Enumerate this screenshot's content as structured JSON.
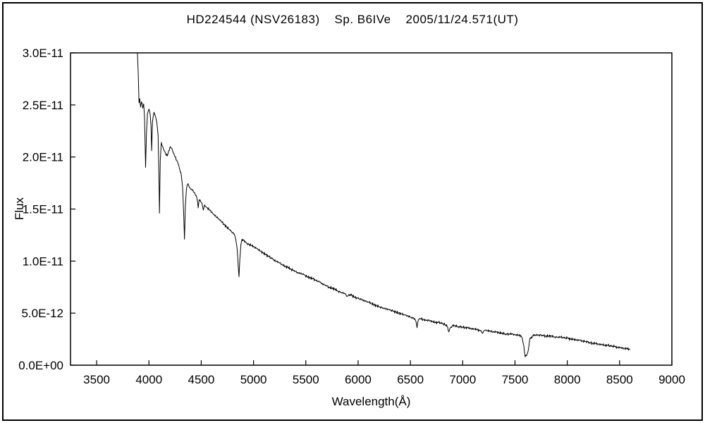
{
  "figure": {
    "background": "#ffffff",
    "frame_color": "#000000"
  },
  "chart_data": {
    "type": "line",
    "title": "HD224544 (NSV26183)    Sp. B6IVe    2005/11/24.571(UT)",
    "xlabel": "Wavelength(Å)",
    "ylabel": "Flux",
    "xlim": [
      3250,
      9000
    ],
    "ylim": [
      0,
      3e-11
    ],
    "x_ticks": [
      3500,
      4000,
      4500,
      5000,
      5500,
      6000,
      6500,
      7000,
      7500,
      8000,
      8500,
      9000
    ],
    "x_tick_labels": [
      "3500",
      "4000",
      "4500",
      "5000",
      "5500",
      "6000",
      "6500",
      "7000",
      "7500",
      "8000",
      "8500",
      "9000"
    ],
    "y_ticks": [
      0,
      5e-12,
      1e-11,
      1.5e-11,
      2e-11,
      2.5e-11,
      3e-11
    ],
    "y_tick_labels": [
      "0.0E+00",
      "5.0E-12",
      "1.0E-11",
      "1.5E-11",
      "2.0E-11",
      "2.5E-11",
      "3.0E-11"
    ],
    "grid": false,
    "legend": "none",
    "line_color": "#000000",
    "axis_color": "#000000",
    "noise_amplitude": 1.2e-13,
    "series": [
      {
        "name": "spectrum",
        "points": [
          [
            3890,
            3.3e-11
          ],
          [
            3898,
            2.8e-11
          ],
          [
            3905,
            2.52e-11
          ],
          [
            3912,
            2.56e-11
          ],
          [
            3920,
            2.48e-11
          ],
          [
            3930,
            2.53e-11
          ],
          [
            3940,
            2.47e-11
          ],
          [
            3950,
            2.51e-11
          ],
          [
            3958,
            2.38e-11
          ],
          [
            3968,
            1.9e-11
          ],
          [
            3976,
            2.22e-11
          ],
          [
            3986,
            2.42e-11
          ],
          [
            4000,
            2.46e-11
          ],
          [
            4012,
            2.41e-11
          ],
          [
            4020,
            2.3e-11
          ],
          [
            4026,
            2.06e-11
          ],
          [
            4034,
            2.34e-11
          ],
          [
            4048,
            2.43e-11
          ],
          [
            4062,
            2.39e-11
          ],
          [
            4076,
            2.33e-11
          ],
          [
            4088,
            2.2e-11
          ],
          [
            4096,
            1.78e-11
          ],
          [
            4101,
            1.46e-11
          ],
          [
            4108,
            1.96e-11
          ],
          [
            4118,
            2.14e-11
          ],
          [
            4132,
            2.1e-11
          ],
          [
            4146,
            2.06e-11
          ],
          [
            4160,
            2.03e-11
          ],
          [
            4175,
            2.01e-11
          ],
          [
            4190,
            2.06e-11
          ],
          [
            4205,
            2.1e-11
          ],
          [
            4220,
            2.08e-11
          ],
          [
            4235,
            2.04e-11
          ],
          [
            4250,
            2e-11
          ],
          [
            4265,
            1.97e-11
          ],
          [
            4280,
            1.93e-11
          ],
          [
            4295,
            1.88e-11
          ],
          [
            4310,
            1.82e-11
          ],
          [
            4322,
            1.71e-11
          ],
          [
            4332,
            1.46e-11
          ],
          [
            4340,
            1.21e-11
          ],
          [
            4348,
            1.52e-11
          ],
          [
            4358,
            1.69e-11
          ],
          [
            4370,
            1.74e-11
          ],
          [
            4382,
            1.72e-11
          ],
          [
            4396,
            1.7e-11
          ],
          [
            4410,
            1.69e-11
          ],
          [
            4425,
            1.67e-11
          ],
          [
            4440,
            1.65e-11
          ],
          [
            4455,
            1.62e-11
          ],
          [
            4465,
            1.57e-11
          ],
          [
            4471,
            1.51e-11
          ],
          [
            4480,
            1.59e-11
          ],
          [
            4495,
            1.57e-11
          ],
          [
            4508,
            1.55e-11
          ],
          [
            4520,
            1.49e-11
          ],
          [
            4532,
            1.54e-11
          ],
          [
            4546,
            1.52e-11
          ],
          [
            4560,
            1.51e-11
          ],
          [
            4580,
            1.49e-11
          ],
          [
            4600,
            1.47e-11
          ],
          [
            4620,
            1.45e-11
          ],
          [
            4640,
            1.43e-11
          ],
          [
            4660,
            1.41e-11
          ],
          [
            4680,
            1.39e-11
          ],
          [
            4700,
            1.37e-11
          ],
          [
            4720,
            1.35e-11
          ],
          [
            4740,
            1.33e-11
          ],
          [
            4760,
            1.31e-11
          ],
          [
            4780,
            1.29e-11
          ],
          [
            4800,
            1.27e-11
          ],
          [
            4815,
            1.26e-11
          ],
          [
            4830,
            1.21e-11
          ],
          [
            4845,
            1.1e-11
          ],
          [
            4855,
            9.3e-12
          ],
          [
            4861,
            8.5e-12
          ],
          [
            4869,
            1.02e-11
          ],
          [
            4879,
            1.16e-11
          ],
          [
            4890,
            1.21e-11
          ],
          [
            4905,
            1.2e-11
          ],
          [
            4920,
            1.19e-11
          ],
          [
            4940,
            1.17e-11
          ],
          [
            4960,
            1.16e-11
          ],
          [
            4980,
            1.15e-11
          ],
          [
            5000,
            1.14e-11
          ],
          [
            5030,
            1.12e-11
          ],
          [
            5060,
            1.1e-11
          ],
          [
            5090,
            1.08e-11
          ],
          [
            5120,
            1.06e-11
          ],
          [
            5150,
            1.04e-11
          ],
          [
            5180,
            1.02e-11
          ],
          [
            5210,
            1e-11
          ],
          [
            5240,
            9.9e-12
          ],
          [
            5270,
            9.7e-12
          ],
          [
            5300,
            9.5e-12
          ],
          [
            5330,
            9.4e-12
          ],
          [
            5360,
            9.2e-12
          ],
          [
            5390,
            9.1e-12
          ],
          [
            5420,
            8.9e-12
          ],
          [
            5450,
            8.8e-12
          ],
          [
            5480,
            8.7e-12
          ],
          [
            5510,
            8.5e-12
          ],
          [
            5540,
            8.4e-12
          ],
          [
            5570,
            8.3e-12
          ],
          [
            5600,
            8.1e-12
          ],
          [
            5630,
            8e-12
          ],
          [
            5660,
            7.8e-12
          ],
          [
            5690,
            7.7e-12
          ],
          [
            5720,
            7.5e-12
          ],
          [
            5750,
            7.4e-12
          ],
          [
            5780,
            7.3e-12
          ],
          [
            5810,
            7.1e-12
          ],
          [
            5840,
            7e-12
          ],
          [
            5870,
            6.9e-12
          ],
          [
            5893,
            6.6e-12
          ],
          [
            5912,
            6.8e-12
          ],
          [
            5940,
            6.7e-12
          ],
          [
            5970,
            6.5e-12
          ],
          [
            6000,
            6.4e-12
          ],
          [
            6030,
            6.3e-12
          ],
          [
            6060,
            6.2e-12
          ],
          [
            6090,
            6.1e-12
          ],
          [
            6120,
            6e-12
          ],
          [
            6150,
            5.8e-12
          ],
          [
            6180,
            5.7e-12
          ],
          [
            6210,
            5.6e-12
          ],
          [
            6240,
            5.5e-12
          ],
          [
            6270,
            5.4e-12
          ],
          [
            6300,
            5.3e-12
          ],
          [
            6330,
            5.2e-12
          ],
          [
            6360,
            5.1e-12
          ],
          [
            6390,
            5e-12
          ],
          [
            6420,
            4.9e-12
          ],
          [
            6450,
            4.8e-12
          ],
          [
            6480,
            4.7e-12
          ],
          [
            6510,
            4.6e-12
          ],
          [
            6540,
            4.5e-12
          ],
          [
            6556,
            4.1e-12
          ],
          [
            6563,
            3.6e-12
          ],
          [
            6572,
            4.2e-12
          ],
          [
            6590,
            4.5e-12
          ],
          [
            6620,
            4.4e-12
          ],
          [
            6650,
            4.3e-12
          ],
          [
            6680,
            4.3e-12
          ],
          [
            6710,
            4.2e-12
          ],
          [
            6740,
            4.1e-12
          ],
          [
            6770,
            4.1e-12
          ],
          [
            6800,
            4e-12
          ],
          [
            6830,
            3.9e-12
          ],
          [
            6856,
            3.7e-12
          ],
          [
            6868,
            3.2e-12
          ],
          [
            6882,
            3.6e-12
          ],
          [
            6900,
            3.8e-12
          ],
          [
            6930,
            3.8e-12
          ],
          [
            6960,
            3.7e-12
          ],
          [
            6990,
            3.7e-12
          ],
          [
            7020,
            3.6e-12
          ],
          [
            7050,
            3.6e-12
          ],
          [
            7080,
            3.5e-12
          ],
          [
            7110,
            3.5e-12
          ],
          [
            7140,
            3.4e-12
          ],
          [
            7170,
            3.3e-12
          ],
          [
            7186,
            3.1e-12
          ],
          [
            7202,
            3.3e-12
          ],
          [
            7230,
            3.3e-12
          ],
          [
            7260,
            3.3e-12
          ],
          [
            7290,
            3.2e-12
          ],
          [
            7320,
            3.2e-12
          ],
          [
            7350,
            3.1e-12
          ],
          [
            7380,
            3.1e-12
          ],
          [
            7410,
            3e-12
          ],
          [
            7440,
            3e-12
          ],
          [
            7470,
            3e-12
          ],
          [
            7500,
            2.9e-12
          ],
          [
            7530,
            2.9e-12
          ],
          [
            7560,
            2.8e-12
          ],
          [
            7584,
            1.9e-12
          ],
          [
            7598,
            8e-13
          ],
          [
            7610,
            9e-13
          ],
          [
            7624,
            1.3e-12
          ],
          [
            7640,
            2.4e-12
          ],
          [
            7656,
            2.7e-12
          ],
          [
            7672,
            2.8e-12
          ],
          [
            7700,
            2.9e-12
          ],
          [
            7730,
            2.9e-12
          ],
          [
            7760,
            2.9e-12
          ],
          [
            7790,
            2.8e-12
          ],
          [
            7820,
            2.8e-12
          ],
          [
            7850,
            2.8e-12
          ],
          [
            7880,
            2.7e-12
          ],
          [
            7910,
            2.7e-12
          ],
          [
            7940,
            2.7e-12
          ],
          [
            7970,
            2.6e-12
          ],
          [
            8000,
            2.6e-12
          ],
          [
            8030,
            2.5e-12
          ],
          [
            8060,
            2.5e-12
          ],
          [
            8090,
            2.4e-12
          ],
          [
            8120,
            2.4e-12
          ],
          [
            8150,
            2.3e-12
          ],
          [
            8180,
            2.3e-12
          ],
          [
            8210,
            2.2e-12
          ],
          [
            8240,
            2.1e-12
          ],
          [
            8270,
            2.1e-12
          ],
          [
            8300,
            2e-12
          ],
          [
            8330,
            2e-12
          ],
          [
            8360,
            1.9e-12
          ],
          [
            8390,
            1.9e-12
          ],
          [
            8420,
            1.8e-12
          ],
          [
            8450,
            1.8e-12
          ],
          [
            8480,
            1.7e-12
          ],
          [
            8510,
            1.7e-12
          ],
          [
            8540,
            1.6e-12
          ],
          [
            8570,
            1.6e-12
          ],
          [
            8600,
            1.5e-12
          ]
        ]
      }
    ]
  }
}
